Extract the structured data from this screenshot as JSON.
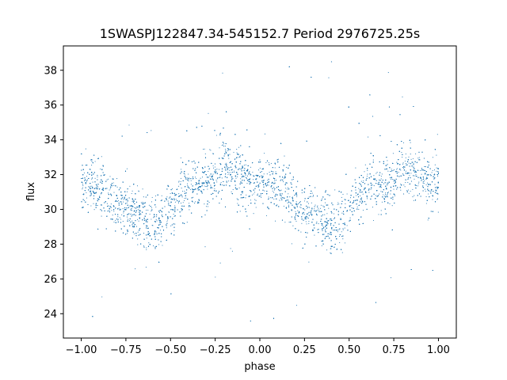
{
  "chart_data": {
    "type": "scatter",
    "title": "1SWASPJ122847.34-545152.7 Period 2976725.25s",
    "xlabel": "phase",
    "ylabel": "flux",
    "xlim": [
      -1.1,
      1.1
    ],
    "ylim": [
      22.6,
      39.4
    ],
    "x_ticks": [
      -1.0,
      -0.75,
      -0.5,
      -0.25,
      0.0,
      0.25,
      0.5,
      0.75,
      1.0
    ],
    "x_tick_labels": [
      "−1.00",
      "−0.75",
      "−0.50",
      "−0.25",
      "0.00",
      "0.25",
      "0.50",
      "0.75",
      "1.00"
    ],
    "y_ticks": [
      24,
      26,
      28,
      30,
      32,
      34,
      36,
      38
    ],
    "y_tick_labels": [
      "24",
      "26",
      "28",
      "30",
      "32",
      "34",
      "36",
      "38"
    ],
    "grid": false,
    "marker_color": "#1f77b4",
    "series": [
      {
        "phase_profile": [
          [
            -1.0,
            31.8
          ],
          [
            -0.95,
            31.5
          ],
          [
            -0.9,
            31.3
          ],
          [
            -0.85,
            30.8
          ],
          [
            -0.8,
            30.2
          ],
          [
            -0.75,
            30.0
          ],
          [
            -0.7,
            29.8
          ],
          [
            -0.65,
            29.5
          ],
          [
            -0.6,
            29.2
          ],
          [
            -0.55,
            29.3
          ],
          [
            -0.5,
            30.2
          ],
          [
            -0.45,
            30.8
          ],
          [
            -0.4,
            31.2
          ],
          [
            -0.35,
            31.3
          ],
          [
            -0.3,
            31.5
          ],
          [
            -0.25,
            31.8
          ],
          [
            -0.2,
            32.5
          ],
          [
            -0.15,
            32.2
          ],
          [
            -0.1,
            31.9
          ],
          [
            -0.05,
            31.5
          ],
          [
            0.0,
            31.6
          ],
          [
            0.05,
            31.5
          ],
          [
            0.1,
            31.3
          ],
          [
            0.15,
            30.8
          ],
          [
            0.2,
            30.2
          ],
          [
            0.25,
            30.0
          ],
          [
            0.3,
            29.8
          ],
          [
            0.35,
            29.5
          ],
          [
            0.4,
            29.2
          ],
          [
            0.45,
            29.3
          ],
          [
            0.5,
            30.2
          ],
          [
            0.55,
            30.8
          ],
          [
            0.6,
            31.2
          ],
          [
            0.65,
            31.3
          ],
          [
            0.7,
            31.5
          ],
          [
            0.75,
            31.8
          ],
          [
            0.8,
            32.5
          ],
          [
            0.85,
            32.2
          ],
          [
            0.9,
            31.9
          ],
          [
            0.95,
            31.5
          ],
          [
            1.0,
            31.6
          ]
        ],
        "scatter_spread": 1.1,
        "point_count": 9000
      }
    ]
  }
}
